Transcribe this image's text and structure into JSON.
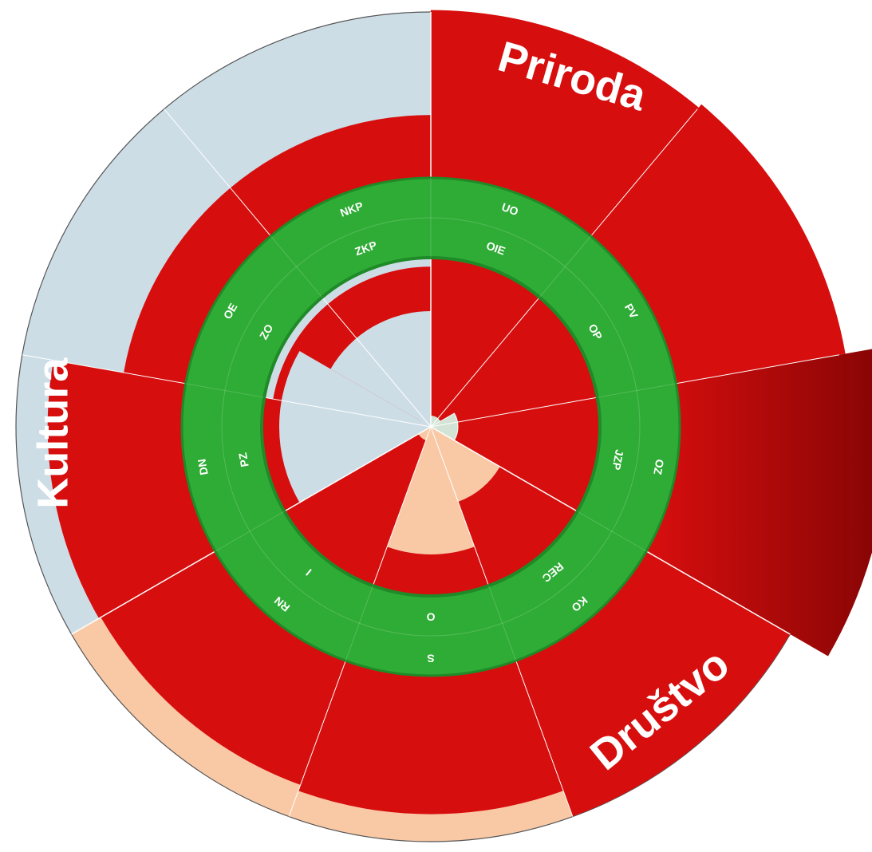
{
  "chart_data": {
    "type": "radial-bar",
    "title": "",
    "colors": {
      "kultura": "#cddde6",
      "priroda": "#d3e3d5",
      "drustvo": "#f9c9a6",
      "bar": "#d70e0e",
      "bar_dark": "#8a0505",
      "ring": "#2fac35",
      "ring_border": "#1f8a28"
    },
    "sectors": [
      {
        "name": "Priroda",
        "color_key": "priroda",
        "start_deg": 0,
        "end_deg": 120
      },
      {
        "name": "Društvo",
        "color_key": "drustvo",
        "start_deg": 120,
        "end_deg": 240
      },
      {
        "name": "Kultura",
        "color_key": "kultura",
        "start_deg": 240,
        "end_deg": 360
      }
    ],
    "outer_ring_labels": [
      "UO",
      "PV",
      "OZ",
      "KO",
      "S",
      "RN",
      "DN",
      "OE",
      "NKP"
    ],
    "inner_ring_labels": [
      "OIE",
      "OP",
      "JZP",
      "REC",
      "O",
      "I",
      "PZ",
      "ZO",
      "ZKP"
    ],
    "outer_bars": [
      {
        "label": "UO",
        "value": 0.8
      },
      {
        "label": "PV",
        "value": 0.82
      },
      {
        "label": "OZ",
        "value": 1.0
      },
      {
        "label": "KO",
        "value": 0.79
      },
      {
        "label": "S",
        "value": 0.66
      },
      {
        "label": "RN",
        "value": 0.63
      },
      {
        "label": "DN",
        "value": 0.64
      },
      {
        "label": "OE",
        "value": 0.3
      },
      {
        "label": "NKP",
        "value": 0.3
      }
    ],
    "inner_bars": [
      {
        "label": "OIE",
        "value": 0.38
      },
      {
        "label": "OP",
        "value": 0.38
      },
      {
        "label": "JZP",
        "value": 0.38
      },
      {
        "label": "REC",
        "value": 0.38
      },
      {
        "label": "O",
        "value": 0.36
      },
      {
        "label": "I",
        "value": 0.38
      },
      {
        "label": "PZ",
        "value": 0.37
      },
      {
        "label": "ZO",
        "value": 0.33
      },
      {
        "label": "ZKP",
        "value": 0.33
      }
    ],
    "center_bars": [
      {
        "sector": "Priroda",
        "value": 0.067
      },
      {
        "sector": "Društvo",
        "value": 0.33
      },
      {
        "sector": "Kultura",
        "value": 0.0
      }
    ]
  }
}
